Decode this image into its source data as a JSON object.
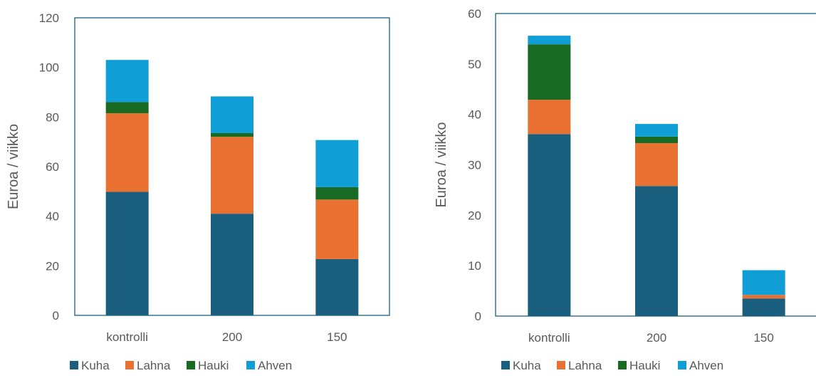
{
  "chart_data": [
    {
      "type": "bar",
      "stacked": true,
      "categories": [
        "kontrolli",
        "200",
        "150"
      ],
      "series": [
        {
          "name": "Kuha",
          "values": [
            49.8,
            41,
            22.7
          ]
        },
        {
          "name": "Lahna",
          "values": [
            31.7,
            31,
            24
          ]
        },
        {
          "name": "Hauki",
          "values": [
            4.5,
            1.5,
            5
          ]
        },
        {
          "name": "Ahven",
          "values": [
            17,
            14.8,
            19
          ]
        }
      ],
      "colors": [
        "#1A5F7E",
        "#E97132",
        "#196B24",
        "#0F9ED5"
      ],
      "ylabel": "Euroa / viikko",
      "ylim": [
        0,
        120
      ],
      "yticks": [
        "0",
        "20",
        "40",
        "60",
        "80",
        "100",
        "120"
      ],
      "grid": false,
      "legend": "bottom"
    },
    {
      "type": "bar",
      "stacked": true,
      "categories": [
        "kontrolli",
        "200",
        "150"
      ],
      "series": [
        {
          "name": "Kuha",
          "values": [
            36.1,
            25.8,
            3.5
          ]
        },
        {
          "name": "Lahna",
          "values": [
            6.8,
            8.5,
            0.7
          ]
        },
        {
          "name": "Hauki",
          "values": [
            11,
            1.3,
            0
          ]
        },
        {
          "name": "Ahven",
          "values": [
            1.7,
            2.5,
            4.9
          ]
        }
      ],
      "colors": [
        "#1A5F7E",
        "#E97132",
        "#196B24",
        "#0F9ED5"
      ],
      "ylabel": "Euroa / viikko",
      "ylim": [
        0,
        60
      ],
      "yticks": [
        "0",
        "10",
        "20",
        "30",
        "40",
        "50",
        "60"
      ],
      "grid": false,
      "legend": "bottom"
    }
  ]
}
